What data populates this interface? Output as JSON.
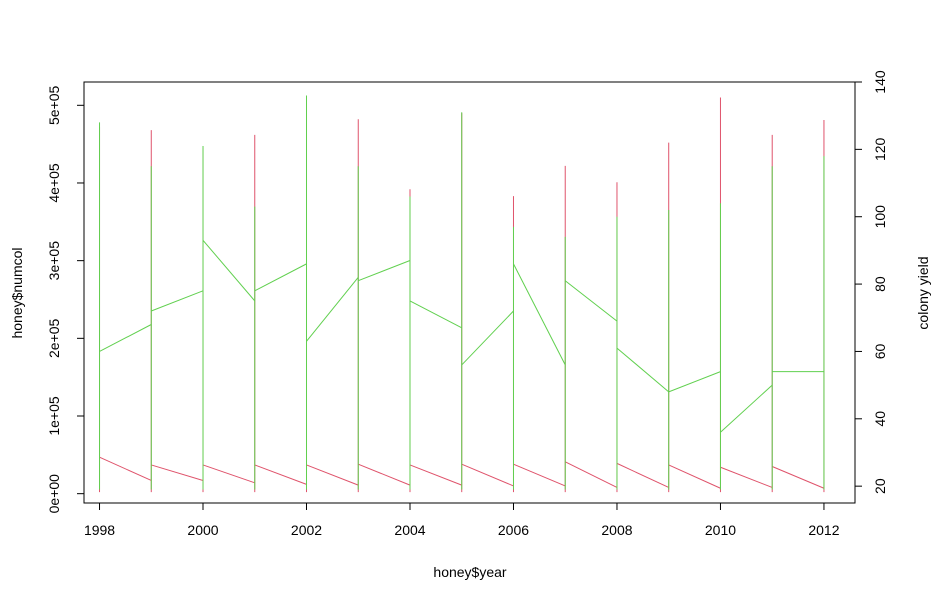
{
  "chart_data": {
    "type": "line",
    "xlabel": "honey$year",
    "ylabel": "honey$numcol",
    "ylabel_right": "colony yield",
    "xlim": [
      1997.7,
      2012.6
    ],
    "ylim": [
      -12000,
      530000
    ],
    "ylim_right": [
      15,
      140
    ],
    "x_ticks": [
      1998,
      2000,
      2002,
      2004,
      2006,
      2008,
      2010,
      2012
    ],
    "y_ticks": [
      0,
      100000,
      200000,
      300000,
      400000,
      500000
    ],
    "y_tick_labels": [
      "0e+00",
      "1e+05",
      "2e+05",
      "3e+05",
      "4e+05",
      "5e+05"
    ],
    "y_right_ticks": [
      20,
      40,
      60,
      80,
      100,
      120,
      140
    ],
    "grid": false,
    "legend": "none",
    "series": [
      {
        "axis": "left",
        "color": "#DF536B",
        "spikes": [
          {
            "x": 1998,
            "min": 2000,
            "max": 472000
          },
          {
            "x": 1999,
            "min": 2000,
            "max": 468000
          },
          {
            "x": 2000,
            "min": 2000,
            "max": 445000
          },
          {
            "x": 2001,
            "min": 2000,
            "max": 462000
          },
          {
            "x": 2002,
            "min": 2000,
            "max": 510000
          },
          {
            "x": 2003,
            "min": 2000,
            "max": 482000
          },
          {
            "x": 2004,
            "min": 2000,
            "max": 392000
          },
          {
            "x": 2005,
            "min": 2000,
            "max": 490000
          },
          {
            "x": 2006,
            "min": 2000,
            "max": 383000
          },
          {
            "x": 2007,
            "min": 2000,
            "max": 422000
          },
          {
            "x": 2008,
            "min": 2000,
            "max": 401000
          },
          {
            "x": 2009,
            "min": 2000,
            "max": 452000
          },
          {
            "x": 2010,
            "min": 2000,
            "max": 510000
          },
          {
            "x": 2011,
            "min": 2000,
            "max": 462000
          },
          {
            "x": 2012,
            "min": 2000,
            "max": 481000
          }
        ],
        "segments": [
          [
            [
              1998,
              47000
            ],
            [
              1999,
              17000
            ]
          ],
          [
            [
              1999,
              37000
            ],
            [
              2000,
              17000
            ]
          ],
          [
            [
              2000,
              37000
            ],
            [
              2001,
              14000
            ]
          ],
          [
            [
              2001,
              37000
            ],
            [
              2002,
              12000
            ]
          ],
          [
            [
              2002,
              37000
            ],
            [
              2003,
              11000
            ]
          ],
          [
            [
              2003,
              38000
            ],
            [
              2004,
              11000
            ]
          ],
          [
            [
              2004,
              37000
            ],
            [
              2005,
              11000
            ]
          ],
          [
            [
              2005,
              38000
            ],
            [
              2006,
              10000
            ]
          ],
          [
            [
              2006,
              38000
            ],
            [
              2007,
              10000
            ]
          ],
          [
            [
              2007,
              41000
            ],
            [
              2008,
              8000
            ]
          ],
          [
            [
              2008,
              39000
            ],
            [
              2009,
              8000
            ]
          ],
          [
            [
              2009,
              37000
            ],
            [
              2010,
              7000
            ]
          ],
          [
            [
              2010,
              34000
            ],
            [
              2011,
              8000
            ]
          ],
          [
            [
              2011,
              35000
            ],
            [
              2012,
              7000
            ]
          ]
        ]
      },
      {
        "axis": "right",
        "color": "#61D04F",
        "spikes": [
          {
            "x": 1998,
            "min": 19,
            "max": 128
          },
          {
            "x": 1999,
            "min": 19,
            "max": 115
          },
          {
            "x": 2000,
            "min": 19,
            "max": 121
          },
          {
            "x": 2001,
            "min": 19,
            "max": 103
          },
          {
            "x": 2002,
            "min": 19,
            "max": 136
          },
          {
            "x": 2003,
            "min": 19,
            "max": 115
          },
          {
            "x": 2004,
            "min": 19,
            "max": 106
          },
          {
            "x": 2005,
            "min": 19,
            "max": 131
          },
          {
            "x": 2006,
            "min": 19,
            "max": 97
          },
          {
            "x": 2007,
            "min": 19,
            "max": 94
          },
          {
            "x": 2008,
            "min": 19,
            "max": 100
          },
          {
            "x": 2009,
            "min": 19,
            "max": 102
          },
          {
            "x": 2010,
            "min": 19,
            "max": 104
          },
          {
            "x": 2011,
            "min": 19,
            "max": 115
          },
          {
            "x": 2012,
            "min": 19,
            "max": 118
          }
        ],
        "segments": [
          [
            [
              1998,
              60
            ],
            [
              1999,
              68
            ]
          ],
          [
            [
              1999,
              72
            ],
            [
              2000,
              78
            ]
          ],
          [
            [
              2000,
              93
            ],
            [
              2001,
              75
            ]
          ],
          [
            [
              2001,
              78
            ],
            [
              2002,
              86
            ]
          ],
          [
            [
              2002,
              63
            ],
            [
              2003,
              82
            ]
          ],
          [
            [
              2003,
              81
            ],
            [
              2004,
              87
            ]
          ],
          [
            [
              2004,
              75
            ],
            [
              2005,
              67
            ]
          ],
          [
            [
              2005,
              56
            ],
            [
              2006,
              72
            ]
          ],
          [
            [
              2006,
              86
            ],
            [
              2007,
              56
            ]
          ],
          [
            [
              2007,
              81
            ],
            [
              2008,
              69
            ]
          ],
          [
            [
              2008,
              61
            ],
            [
              2009,
              48
            ]
          ],
          [
            [
              2009,
              48
            ],
            [
              2010,
              54
            ]
          ],
          [
            [
              2010,
              36
            ],
            [
              2011,
              50
            ]
          ],
          [
            [
              2011,
              54
            ],
            [
              2012,
              54
            ]
          ]
        ]
      }
    ]
  }
}
